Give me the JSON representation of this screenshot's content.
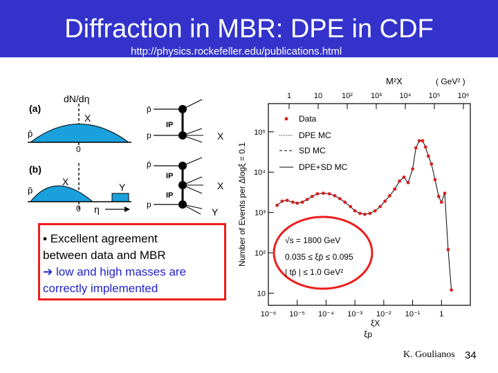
{
  "slide": {
    "title": "Diffraction in MBR: DPE in CDF",
    "url": "http://physics.rockefeller.edu/publications.html",
    "author": "K. Goulianos",
    "page_number": "34",
    "accent_color": "#3333cc",
    "callout_border_color": "#ee1c1c"
  },
  "callout": {
    "bullet": "▪",
    "line1": "Excellent agreement",
    "line2": "between data and MBR",
    "arrow": "➔",
    "line3": "low and high masses are",
    "line4": "correctly implemented"
  },
  "diagram": {
    "panel_a": "(a)",
    "panel_b": "(b)",
    "dn_deta": "dN/dη",
    "pbar": "p̄",
    "p": "p",
    "X": "X",
    "Y": "Y",
    "zero": "0",
    "eta": "η",
    "IP": "IP"
  },
  "chart_data": {
    "type": "line",
    "top_axis": {
      "label": "M²X",
      "unit": "( GeV² )",
      "tick_labels": [
        "1",
        "10",
        "10²",
        "10³",
        "10⁴",
        "10⁵",
        "10⁶"
      ]
    },
    "x_axis": {
      "label": "ξX",
      "sublabel": "ξp",
      "scale": "log",
      "range": [
        1e-06,
        10
      ],
      "tick_labels": [
        "10⁻⁶",
        "10⁻⁵",
        "10⁻⁴",
        "10⁻³",
        "10⁻²",
        "10⁻¹",
        "1"
      ]
    },
    "y_axis": {
      "label": "Number of Events per Δlogξ = 0.1",
      "scale": "log",
      "range": [
        5,
        500000.0
      ],
      "tick_labels": [
        "10",
        "10²",
        "10³",
        "10⁴",
        "10⁵"
      ]
    },
    "legend": {
      "placement": "top-left",
      "entries": [
        "Data",
        "DPE MC",
        "SD MC",
        "DPE+SD MC"
      ]
    },
    "annotations": [
      "√s = 1800 GeV",
      "0.035 ≤ ξp̄ ≤ 0.095",
      "| tp̄ | ≤ 1.0 GeV²"
    ],
    "series": [
      {
        "name": "Data",
        "x": [
          2e-06,
          3e-06,
          4.5e-06,
          7e-06,
          1e-05,
          1.5e-05,
          2.2e-05,
          3.3e-05,
          5e-05,
          8e-05,
          0.00013,
          0.0002,
          0.0003,
          0.00045,
          0.0007,
          0.001,
          0.0015,
          0.0022,
          0.0033,
          0.005,
          0.0075,
          0.011,
          0.016,
          0.024,
          0.035,
          0.05,
          0.07,
          0.1,
          0.13,
          0.17,
          0.22,
          0.28,
          0.35,
          0.45,
          0.6,
          0.8,
          1.0,
          1.3,
          1.7,
          2.2
        ],
        "values": [
          1500,
          1900,
          2000,
          1800,
          1700,
          1800,
          2100,
          2500,
          2900,
          3000,
          2900,
          2600,
          2200,
          1800,
          1400,
          1100,
          950,
          900,
          950,
          1100,
          1400,
          1900,
          2600,
          3800,
          6000,
          7500,
          5500,
          12000,
          40000,
          60000,
          60000,
          42000,
          25000,
          16000,
          6500,
          2500,
          1800,
          3000,
          120,
          12
        ]
      }
    ]
  }
}
